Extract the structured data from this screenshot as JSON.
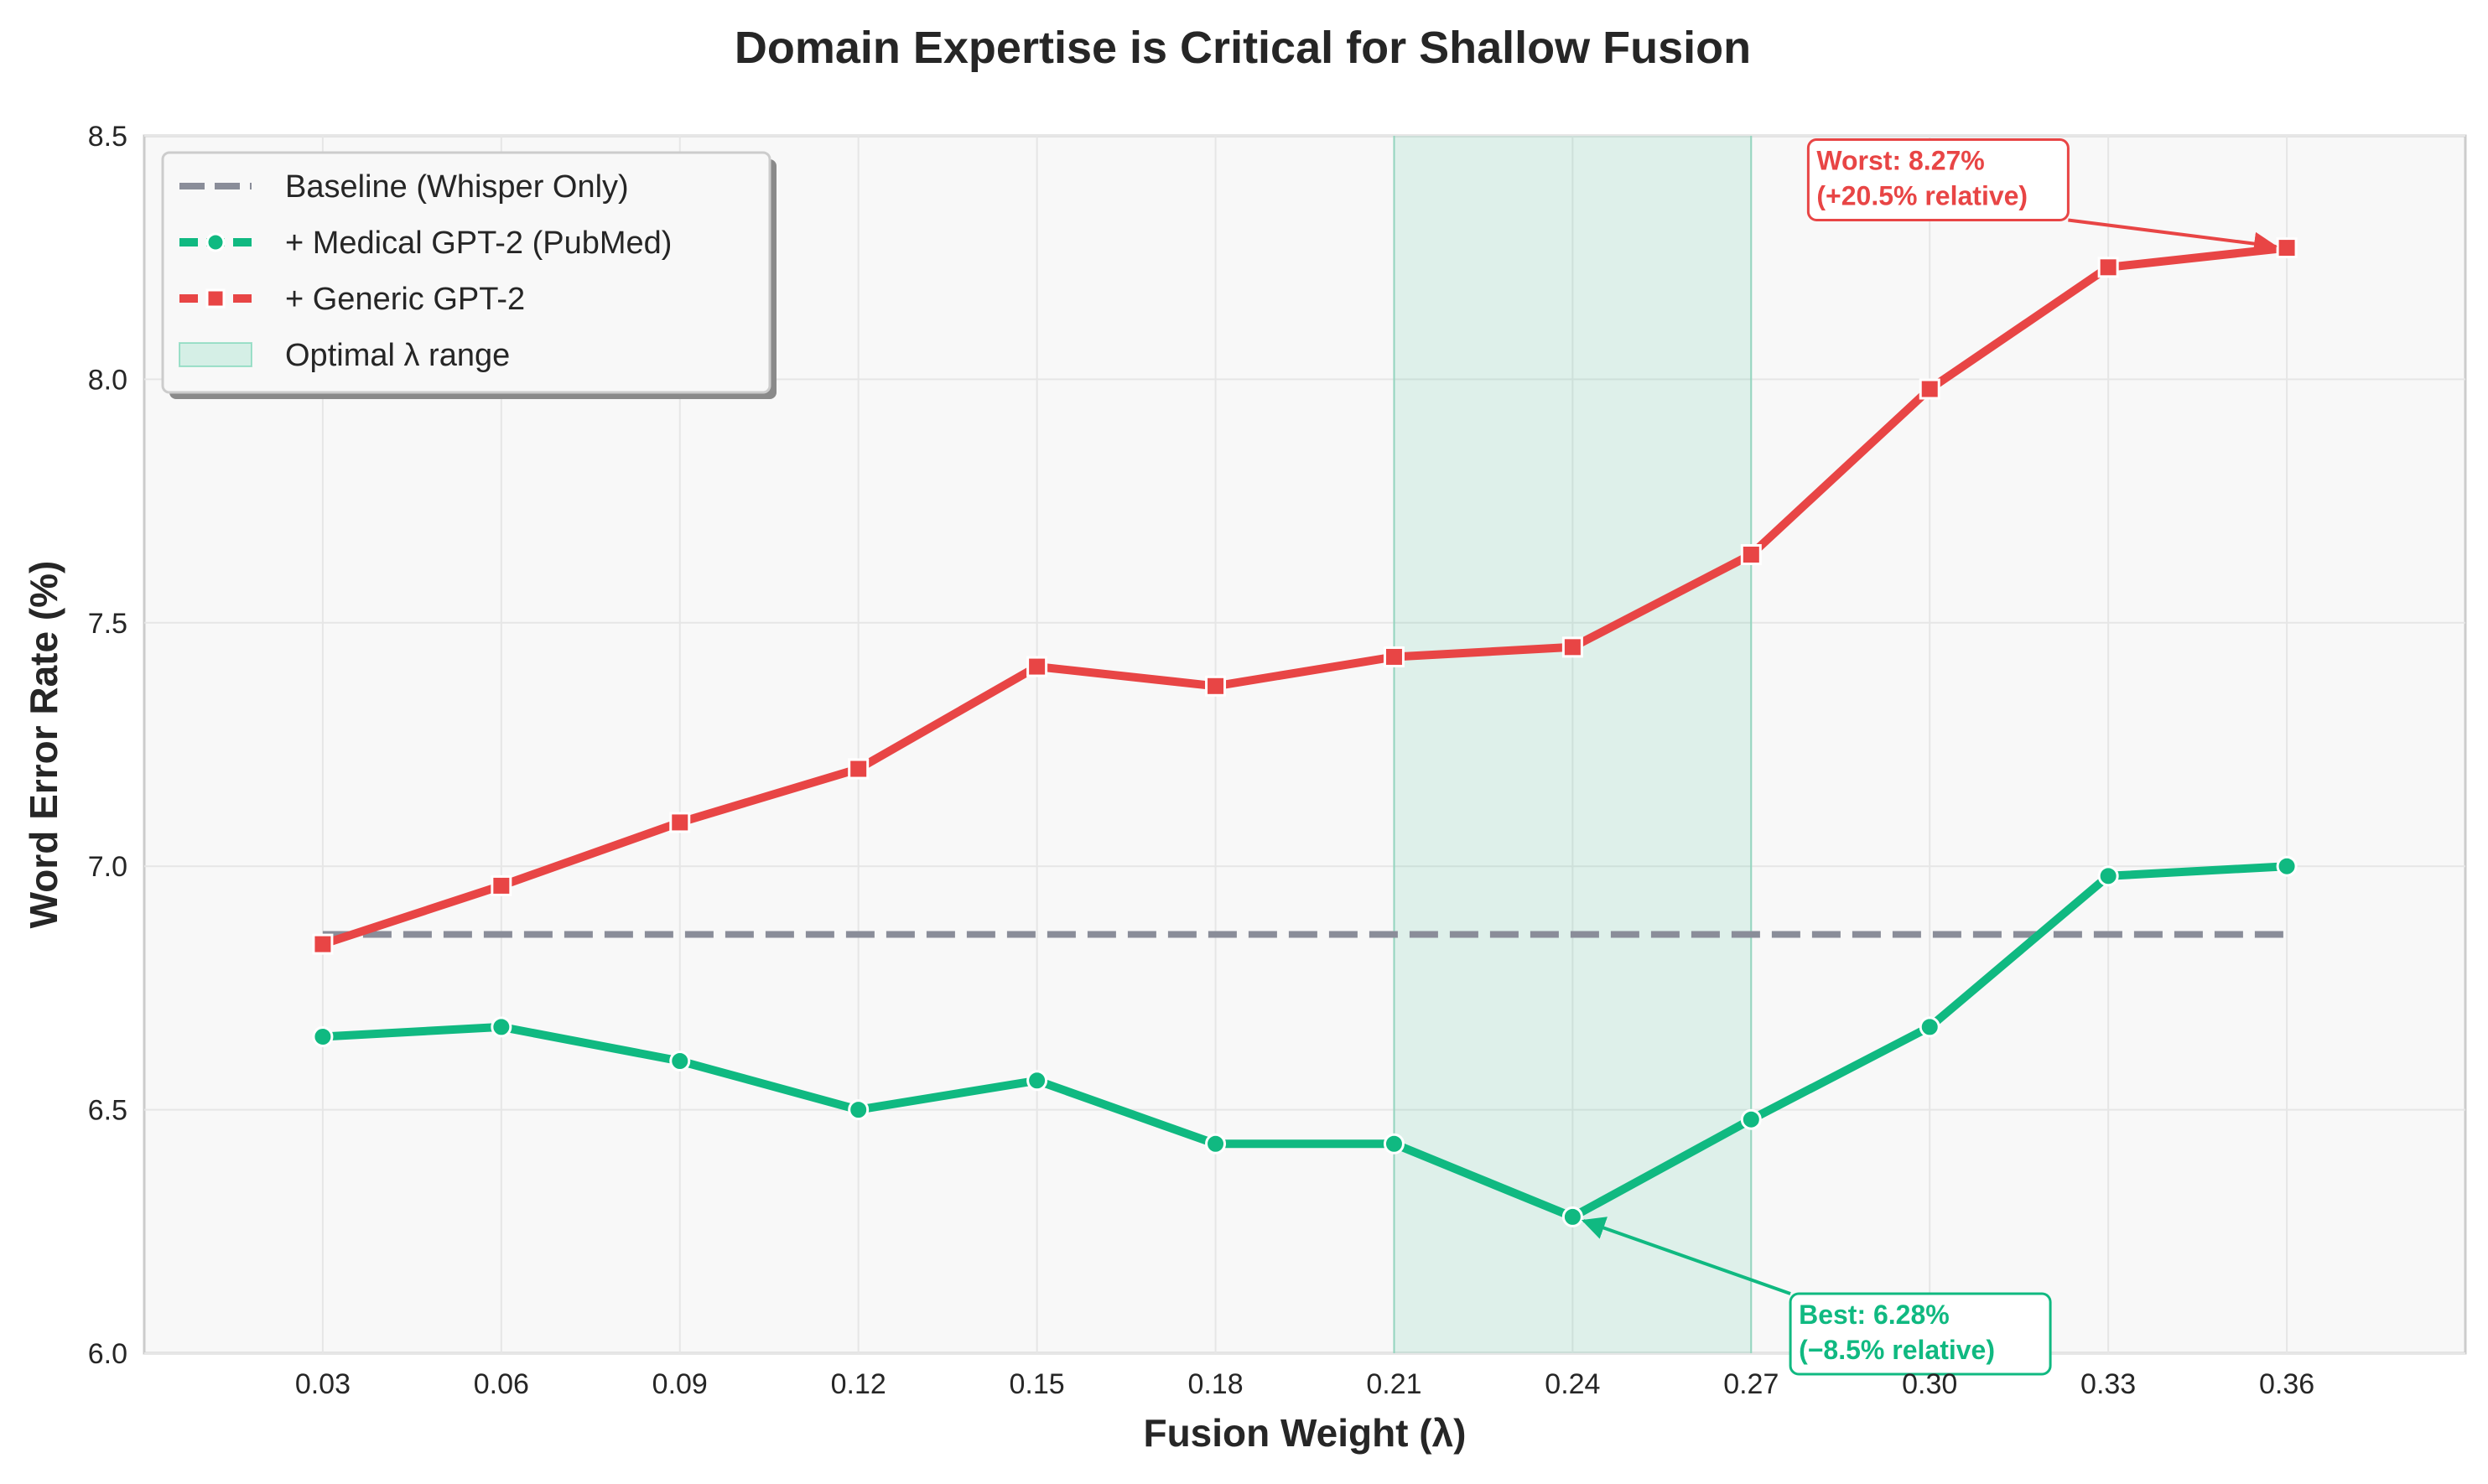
{
  "chart_data": {
    "type": "line",
    "title": "Domain Expertise is Critical for Shallow Fusion",
    "xlabel": "Fusion Weight (λ)",
    "ylabel": "Word Error Rate (%)",
    "x": [
      0.03,
      0.06,
      0.09,
      0.12,
      0.15,
      0.18,
      0.21,
      0.24,
      0.27,
      0.3,
      0.33,
      0.36
    ],
    "x_tick_labels": [
      "0.03",
      "0.06",
      "0.09",
      "0.12",
      "0.15",
      "0.18",
      "0.21",
      "0.24",
      "0.27",
      "0.30",
      "0.33",
      "0.36"
    ],
    "xlim": [
      0.0,
      0.39
    ],
    "ylim": [
      6.0,
      8.5
    ],
    "y_ticks": [
      6.0,
      6.5,
      7.0,
      7.5,
      8.0,
      8.5
    ],
    "y_tick_labels": [
      "6.0",
      "6.5",
      "7.0",
      "7.5",
      "8.0",
      "8.5"
    ],
    "grid": true,
    "legend_position": "top-left",
    "series": [
      {
        "name": "Baseline (Whisper Only)",
        "style": "dashed",
        "color": "#8a8d99",
        "values": [
          6.86,
          6.86,
          6.86,
          6.86,
          6.86,
          6.86,
          6.86,
          6.86,
          6.86,
          6.86,
          6.86,
          6.86
        ]
      },
      {
        "name": "+ Medical GPT-2 (PubMed)",
        "style": "solid-circle",
        "color": "#10b981",
        "values": [
          6.65,
          6.67,
          6.6,
          6.5,
          6.56,
          6.43,
          6.43,
          6.28,
          6.48,
          6.67,
          6.98,
          7.0
        ]
      },
      {
        "name": "+ Generic GPT-2",
        "style": "solid-square",
        "color": "#e84545",
        "values": [
          6.84,
          6.96,
          7.09,
          7.2,
          7.41,
          7.37,
          7.43,
          7.45,
          7.64,
          7.98,
          8.23,
          8.27
        ]
      }
    ],
    "shaded_region": {
      "name": "Optimal λ range",
      "x_range": [
        0.21,
        0.27
      ],
      "color": "#10b981"
    },
    "annotations": [
      {
        "line1": "Best: 6.28%",
        "line2": "(−8.5% relative)",
        "point": [
          0.24,
          6.28
        ],
        "text_at": [
          0.278,
          6.05
        ],
        "color": "#10b981"
      },
      {
        "line1": "Worst: 8.27%",
        "line2": "(+20.5% relative)",
        "point": [
          0.36,
          8.27
        ],
        "text_at": [
          0.281,
          8.42
        ],
        "color": "#e84545"
      }
    ]
  }
}
